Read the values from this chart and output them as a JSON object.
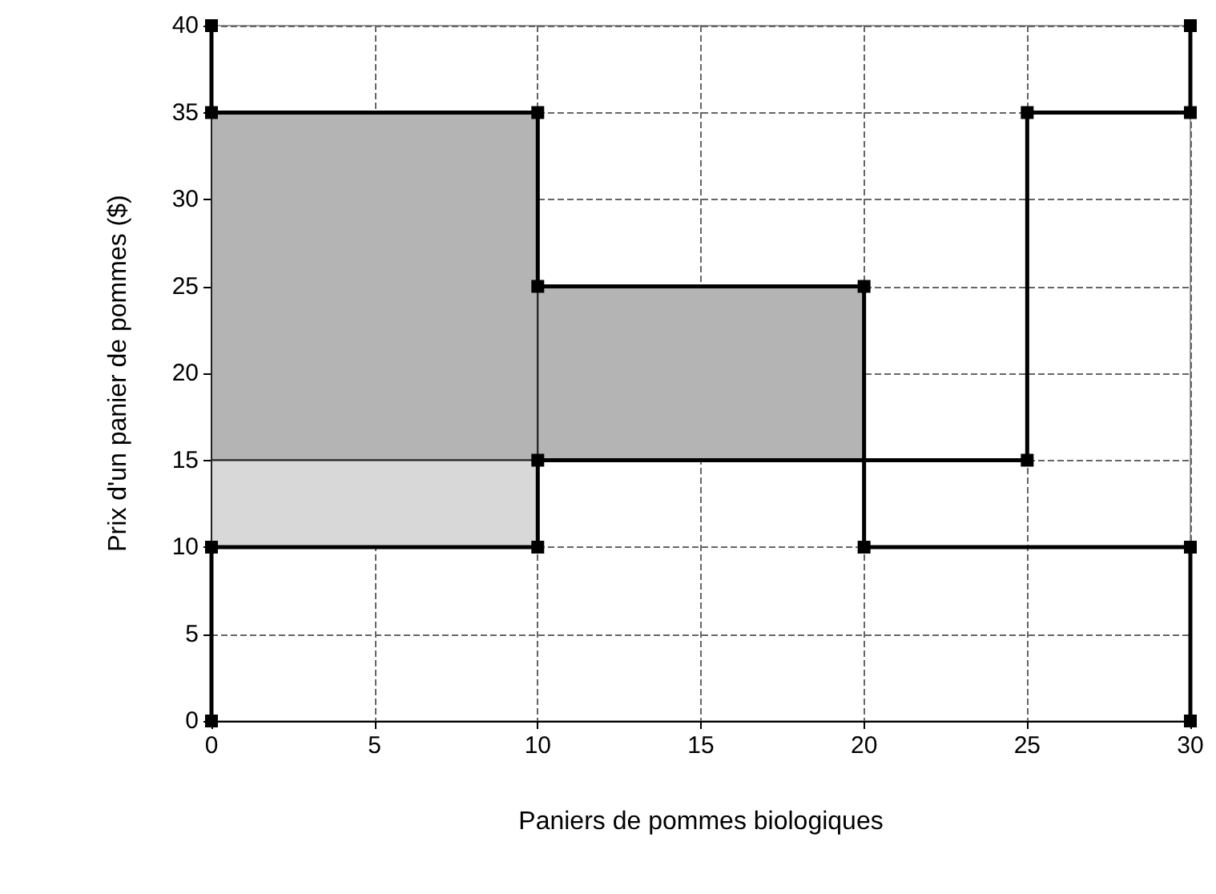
{
  "chart_data": {
    "type": "line",
    "xlabel": "Paniers de pommes biologiques",
    "ylabel": "Prix d'un panier de pommes ($)",
    "xlim": [
      0,
      30
    ],
    "xticks": [
      0,
      5,
      10,
      15,
      20,
      25,
      30
    ],
    "ylim": [
      0,
      40
    ],
    "yticks": [
      0,
      5,
      10,
      15,
      20,
      25,
      30,
      35,
      40
    ],
    "grid": true,
    "line_style": "solid",
    "series": [
      {
        "type": "bar",
        "x": [
          5,
          15
        ],
        "base": [
          15,
          15
        ],
        "values": [
          20,
          10
        ],
        "color": "#b4b4b4"
      },
      {
        "type": "bar",
        "x": [
          5
        ],
        "base": [
          10
        ],
        "values": [
          5
        ],
        "color": "#d8d8d8"
      },
      {
        "color": "#000000",
        "marker": "square",
        "x": [
          0,
          0,
          10,
          10,
          20,
          20,
          30,
          30
        ],
        "values": [
          40,
          35,
          35,
          25,
          25,
          10,
          10,
          0
        ]
      },
      {
        "color": "#000000",
        "marker": "square",
        "x": [
          0,
          0,
          10,
          10,
          25,
          25,
          30,
          30
        ],
        "values": [
          0,
          10,
          10,
          15,
          15,
          35,
          35,
          40
        ]
      }
    ]
  }
}
